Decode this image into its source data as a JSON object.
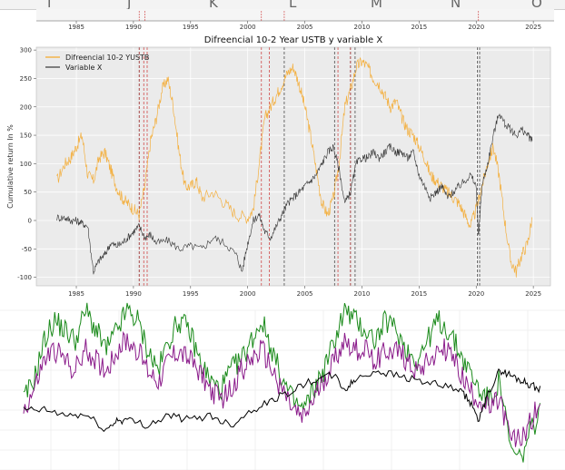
{
  "spreadsheet": {
    "column_letters": [
      "I",
      "J",
      "K",
      "L",
      "M",
      "N",
      "O"
    ]
  },
  "chart_data": [
    {
      "type": "line",
      "title": "Difreencial 10-2 Year USTB  y variable X",
      "xlabel": "",
      "ylabel": "Cumulative return In %",
      "xlim": [
        1981.5,
        2026.5
      ],
      "ylim": [
        -115,
        305
      ],
      "x_ticks": [
        1985,
        1990,
        1995,
        2000,
        2005,
        2010,
        2015,
        2020,
        2025
      ],
      "y_ticks": [
        -100,
        -50,
        0,
        50,
        100,
        150,
        200,
        250,
        300
      ],
      "grid": true,
      "legend": "top-left",
      "series": [
        {
          "name": "Difreencial 10-2 YUSTB",
          "color": "#f5a623",
          "x": [
            1983.3,
            1984.0,
            1984.5,
            1985.0,
            1985.5,
            1986.0,
            1986.5,
            1987.0,
            1987.5,
            1988.0,
            1988.5,
            1989.0,
            1989.5,
            1990.0,
            1990.5,
            1991.0,
            1991.5,
            1992.0,
            1992.5,
            1993.0,
            1993.5,
            1994.0,
            1994.5,
            1995.0,
            1995.5,
            1996.0,
            1997.0,
            1998.0,
            1999.0,
            2000.0,
            2000.5,
            2001.0,
            2001.5,
            2002.0,
            2002.5,
            2003.0,
            2003.5,
            2004.0,
            2004.5,
            2005.0,
            2005.5,
            2006.0,
            2006.5,
            2007.0,
            2007.5,
            2008.0,
            2008.5,
            2009.0,
            2009.5,
            2010.0,
            2010.5,
            2011.0,
            2011.5,
            2012.0,
            2012.5,
            2013.0,
            2013.5,
            2014.0,
            2014.5,
            2015.0,
            2015.5,
            2016.0,
            2016.5,
            2017.0,
            2017.5,
            2018.0,
            2018.5,
            2019.0,
            2019.5,
            2020.0,
            2020.5,
            2021.0,
            2021.5,
            2022.0,
            2022.5,
            2023.0,
            2023.5,
            2024.0,
            2024.5,
            2024.9
          ],
          "y": [
            70,
            100,
            110,
            130,
            150,
            80,
            70,
            110,
            120,
            90,
            60,
            40,
            30,
            20,
            10,
            60,
            140,
            180,
            230,
            250,
            200,
            120,
            60,
            60,
            70,
            40,
            50,
            30,
            10,
            5,
            20,
            100,
            180,
            200,
            220,
            240,
            260,
            270,
            240,
            200,
            150,
            90,
            30,
            10,
            40,
            100,
            200,
            230,
            270,
            280,
            270,
            250,
            240,
            220,
            200,
            210,
            180,
            160,
            150,
            130,
            110,
            80,
            70,
            60,
            50,
            40,
            30,
            10,
            -10,
            20,
            60,
            100,
            130,
            80,
            0,
            -70,
            -90,
            -60,
            -40,
            5
          ]
        },
        {
          "name": "Variable X",
          "color": "#333333",
          "x": [
            1983.3,
            1984.0,
            1984.5,
            1985.0,
            1985.5,
            1986.0,
            1986.5,
            1987.0,
            1987.5,
            1988.0,
            1988.5,
            1989.0,
            1989.5,
            1990.0,
            1990.5,
            1991.0,
            1991.5,
            1992.0,
            1993.0,
            1994.0,
            1995.0,
            1996.0,
            1997.0,
            1998.0,
            1999.0,
            1999.5,
            2000.0,
            2000.5,
            2001.0,
            2001.5,
            2002.0,
            2002.5,
            2003.0,
            2003.5,
            2004.0,
            2004.5,
            2005.0,
            2005.5,
            2006.0,
            2006.5,
            2007.0,
            2007.5,
            2008.0,
            2008.5,
            2009.0,
            2009.5,
            2010.0,
            2010.5,
            2011.0,
            2011.5,
            2012.0,
            2012.5,
            2013.0,
            2013.5,
            2014.0,
            2014.5,
            2015.0,
            2015.5,
            2016.0,
            2016.5,
            2017.0,
            2017.5,
            2018.0,
            2018.5,
            2019.0,
            2019.5,
            2020.0,
            2020.2,
            2020.5,
            2021.0,
            2021.5,
            2022.0,
            2022.5,
            2023.0,
            2023.5,
            2024.0,
            2024.5,
            2024.9
          ],
          "y": [
            5,
            5,
            0,
            0,
            -5,
            -10,
            -90,
            -70,
            -60,
            -40,
            -45,
            -40,
            -30,
            -20,
            -10,
            -30,
            -25,
            -40,
            -35,
            -50,
            -45,
            -50,
            -30,
            -40,
            -60,
            -90,
            -40,
            0,
            10,
            -20,
            -30,
            -10,
            10,
            30,
            40,
            50,
            60,
            70,
            80,
            100,
            120,
            130,
            90,
            30,
            50,
            100,
            110,
            110,
            120,
            110,
            120,
            130,
            120,
            120,
            110,
            120,
            80,
            60,
            40,
            50,
            60,
            40,
            50,
            60,
            70,
            80,
            60,
            -30,
            60,
            100,
            150,
            190,
            170,
            160,
            150,
            160,
            150,
            140
          ]
        }
      ],
      "vertical_lines": [
        {
          "x": 1990.5,
          "color": "#8b0000"
        },
        {
          "x": 1990.9,
          "color": "#cc3333"
        },
        {
          "x": 1991.2,
          "color": "#cc3333"
        },
        {
          "x": 2001.2,
          "color": "#cc3333"
        },
        {
          "x": 2001.9,
          "color": "#cc3333"
        },
        {
          "x": 2003.2,
          "color": "#333333"
        },
        {
          "x": 2007.6,
          "color": "#333333"
        },
        {
          "x": 2007.9,
          "color": "#cc3333"
        },
        {
          "x": 2009.0,
          "color": "#8b0000"
        },
        {
          "x": 2009.4,
          "color": "#333333"
        },
        {
          "x": 2020.1,
          "color": "#333333"
        },
        {
          "x": 2020.3,
          "color": "#333333"
        }
      ]
    },
    {
      "type": "line",
      "title": "",
      "xlabel": "",
      "ylabel": "",
      "xlim": [
        0,
        100
      ],
      "ylim": [
        -60,
        100
      ],
      "grid": true,
      "legend": "none",
      "series": [
        {
          "name": "",
          "color": "#1a8a1a",
          "x": [
            0,
            2,
            4,
            6,
            8,
            10,
            12,
            14,
            16,
            18,
            20,
            22,
            24,
            26,
            28,
            30,
            32,
            34,
            36,
            38,
            40,
            42,
            44,
            46,
            48,
            50,
            52,
            54,
            56,
            58,
            60,
            62,
            64,
            66,
            68,
            70,
            72,
            74,
            76,
            78,
            80,
            82,
            84,
            86,
            88,
            90,
            92,
            94,
            96,
            98,
            100
          ],
          "y": [
            10,
            30,
            70,
            90,
            80,
            70,
            100,
            80,
            60,
            80,
            100,
            90,
            60,
            40,
            70,
            90,
            80,
            50,
            30,
            20,
            40,
            50,
            70,
            90,
            60,
            30,
            10,
            0,
            20,
            40,
            70,
            100,
            90,
            80,
            70,
            90,
            80,
            60,
            50,
            70,
            90,
            80,
            60,
            40,
            20,
            10,
            30,
            -40,
            -50,
            -20,
            0
          ]
        },
        {
          "name": "",
          "color": "#8a1a8a",
          "x": [
            0,
            2,
            4,
            6,
            8,
            10,
            12,
            14,
            16,
            18,
            20,
            22,
            24,
            26,
            28,
            30,
            32,
            34,
            36,
            38,
            40,
            42,
            44,
            46,
            48,
            50,
            52,
            54,
            56,
            58,
            60,
            62,
            64,
            66,
            68,
            70,
            72,
            74,
            76,
            78,
            80,
            82,
            84,
            86,
            88,
            90,
            92,
            94,
            96,
            98,
            100
          ],
          "y": [
            0,
            20,
            50,
            60,
            50,
            40,
            60,
            50,
            40,
            60,
            70,
            60,
            40,
            30,
            50,
            60,
            50,
            40,
            20,
            10,
            20,
            40,
            50,
            60,
            40,
            20,
            0,
            -10,
            10,
            30,
            50,
            70,
            60,
            60,
            50,
            60,
            60,
            50,
            40,
            50,
            60,
            60,
            40,
            20,
            10,
            0,
            10,
            -30,
            -30,
            -10,
            10
          ]
        },
        {
          "name": "",
          "color": "#000000",
          "x": [
            0,
            4,
            8,
            12,
            16,
            18,
            20,
            24,
            28,
            32,
            36,
            40,
            44,
            48,
            52,
            56,
            60,
            62,
            64,
            68,
            72,
            76,
            80,
            84,
            86,
            88,
            90,
            92,
            94,
            96,
            98,
            100
          ],
          "y": [
            0,
            0,
            -5,
            -5,
            -20,
            -10,
            -10,
            -15,
            -5,
            -10,
            -5,
            -15,
            0,
            10,
            20,
            30,
            35,
            20,
            30,
            40,
            35,
            30,
            25,
            20,
            10,
            -10,
            20,
            40,
            35,
            30,
            25,
            20
          ]
        }
      ]
    }
  ]
}
